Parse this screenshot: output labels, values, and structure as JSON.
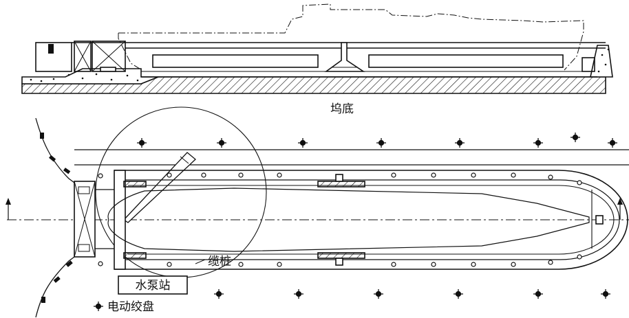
{
  "labels": {
    "dock_floor": "坞底",
    "bollard": "缆桩",
    "pump_station": "水泵站",
    "winch": "电动绞盘"
  },
  "colors": {
    "ink": "#111111",
    "paper": "#ffffff"
  }
}
